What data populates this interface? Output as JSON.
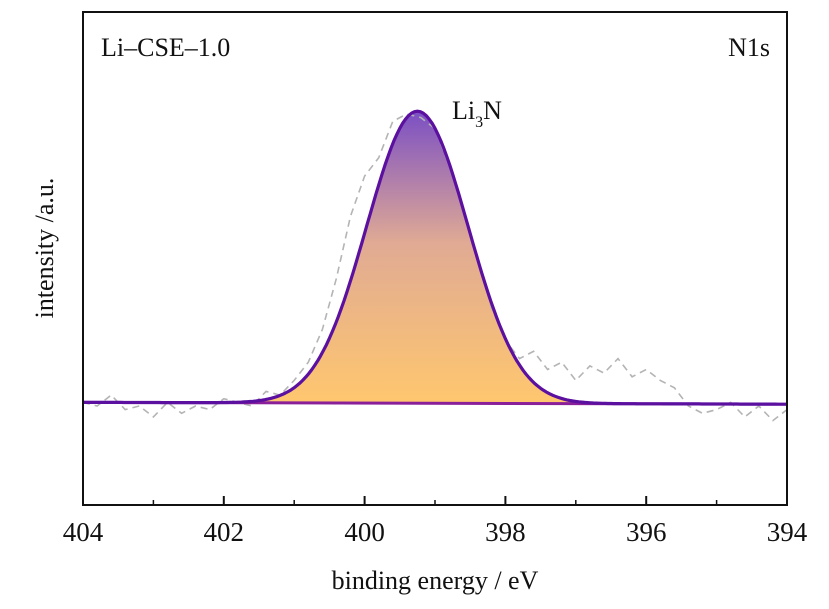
{
  "chart_data": {
    "type": "line",
    "title": "",
    "sample_label": "Li–CSE–1.0",
    "region_label": "N1s",
    "xlabel": "binding energy / eV",
    "ylabel": "intensity /a.u.",
    "x_reversed": true,
    "xlim": [
      404,
      394
    ],
    "x_ticks": [
      404,
      402,
      400,
      398,
      396,
      394
    ],
    "x_tick_labels": [
      "404",
      "402",
      "400",
      "398",
      "396",
      "394"
    ],
    "ylim": [
      0,
      1.0
    ],
    "y_ticks_shown": false,
    "grid": false,
    "legend": "none",
    "peaks": [
      {
        "label": "Li",
        "label_subscript": "3",
        "label_suffix": "N",
        "center": 399.25,
        "amplitude": 0.8,
        "sigma": 0.72
      }
    ],
    "background": {
      "x": [
        404,
        394
      ],
      "y": [
        0.21,
        0.205
      ]
    },
    "raw_series": {
      "style": "dashed",
      "x": [
        404.0,
        403.8,
        403.6,
        403.4,
        403.2,
        403.0,
        402.8,
        402.6,
        402.4,
        402.2,
        402.0,
        401.8,
        401.6,
        401.4,
        401.2,
        401.0,
        400.8,
        400.6,
        400.4,
        400.2,
        400.0,
        399.8,
        399.6,
        399.4,
        399.2,
        399.0,
        398.8,
        398.6,
        398.4,
        398.2,
        398.0,
        397.8,
        397.6,
        397.4,
        397.2,
        397.0,
        396.8,
        396.6,
        396.4,
        396.2,
        396.0,
        395.8,
        395.6,
        395.4,
        395.2,
        395.0,
        394.8,
        394.6,
        394.4,
        394.2,
        394.0
      ],
      "y": [
        0.21,
        0.2,
        0.23,
        0.19,
        0.2,
        0.17,
        0.21,
        0.18,
        0.2,
        0.19,
        0.22,
        0.21,
        0.2,
        0.24,
        0.23,
        0.27,
        0.32,
        0.41,
        0.55,
        0.72,
        0.83,
        0.88,
        0.98,
        1.0,
        0.99,
        0.96,
        0.86,
        0.74,
        0.61,
        0.47,
        0.38,
        0.33,
        0.35,
        0.3,
        0.32,
        0.27,
        0.31,
        0.29,
        0.33,
        0.28,
        0.3,
        0.27,
        0.25,
        0.2,
        0.18,
        0.19,
        0.21,
        0.17,
        0.2,
        0.16,
        0.19
      ]
    }
  },
  "colors": {
    "axis": "#111111",
    "envelope": "#5b10a0",
    "baseline": "#8a1f9a",
    "raw": "#b4b4b4",
    "fill_top": "#7b4fc4",
    "fill_mid": "#e0aa94",
    "fill_bottom": "#ffc76e"
  }
}
